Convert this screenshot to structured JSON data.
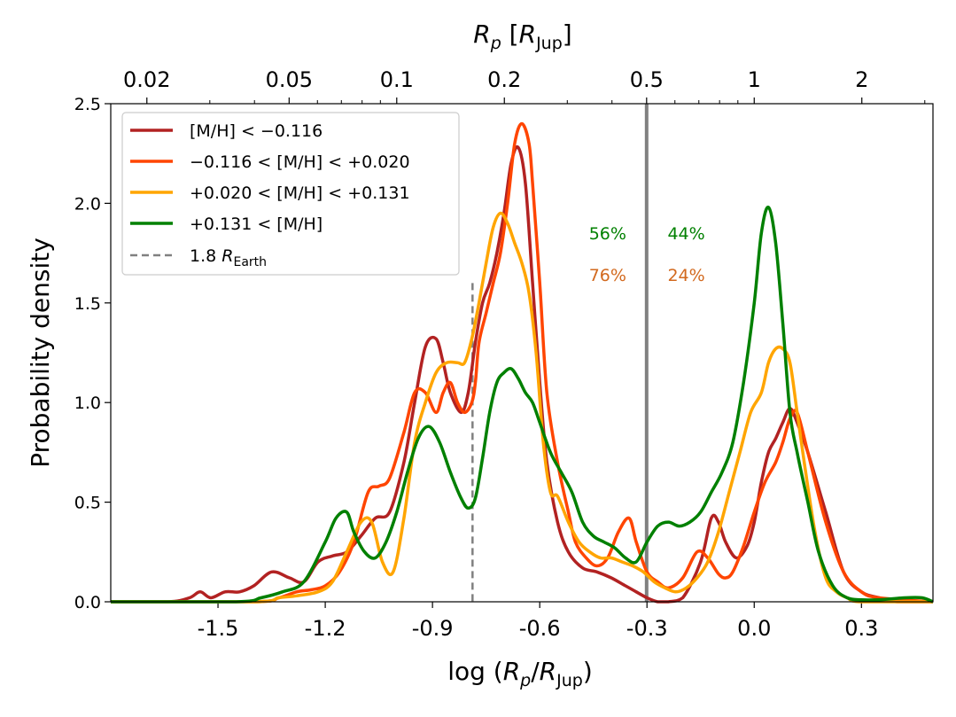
{
  "chart_data": {
    "type": "line",
    "ylabel": "Probability density",
    "xlabel": {
      "prefix": "log (",
      "var": "R",
      "var_sub": "p",
      "slash": "/",
      "den": "R",
      "den_sub": "Jup",
      "suffix": ")"
    },
    "top_xlabel": {
      "var": "R",
      "var_sub": "p",
      "unit": "R",
      "unit_sub": "Jup"
    },
    "xlim": [
      -1.8,
      0.5
    ],
    "ylim": [
      0,
      2.5
    ],
    "xticks": [
      {
        "v": -1.5,
        "label": "-1.5"
      },
      {
        "v": -1.2,
        "label": "-1.2"
      },
      {
        "v": -0.9,
        "label": "-0.9"
      },
      {
        "v": -0.6,
        "label": "-0.6"
      },
      {
        "v": -0.3,
        "label": "-0.3"
      },
      {
        "v": 0.0,
        "label": "0.0"
      },
      {
        "v": 0.3,
        "label": "0.3"
      }
    ],
    "yticks": [
      {
        "v": 0.0,
        "label": "0.0"
      },
      {
        "v": 0.5,
        "label": "0.5"
      },
      {
        "v": 1.0,
        "label": "1.0"
      },
      {
        "v": 1.5,
        "label": "1.5"
      },
      {
        "v": 2.0,
        "label": "2.0"
      },
      {
        "v": 2.5,
        "label": "2.5"
      }
    ],
    "top_ticks": [
      {
        "r": 0.02,
        "label": "0.02"
      },
      {
        "r": 0.05,
        "label": "0.05"
      },
      {
        "r": 0.1,
        "label": "0.1"
      },
      {
        "r": 0.2,
        "label": "0.2"
      },
      {
        "r": 0.5,
        "label": "0.5"
      },
      {
        "r": 1,
        "label": "1"
      },
      {
        "r": 2,
        "label": "2"
      }
    ],
    "top_minor_ticks": [
      0.03,
      0.04,
      0.06,
      0.07,
      0.08,
      0.09,
      0.3,
      0.4,
      0.6,
      0.7,
      0.8,
      0.9,
      3
    ],
    "vline_solid": {
      "x": -0.301,
      "color": "#808080"
    },
    "vline_dashed": {
      "x": -0.788,
      "ymax": 1.6,
      "color": "#808080"
    },
    "annotations": [
      {
        "text": "56%",
        "x": -0.41,
        "y": 1.82,
        "color": "#008000"
      },
      {
        "text": "44%",
        "x": -0.19,
        "y": 1.82,
        "color": "#008000"
      },
      {
        "text": "76%",
        "x": -0.41,
        "y": 1.61,
        "color": "#d2691e"
      },
      {
        "text": "24%",
        "x": -0.19,
        "y": 1.61,
        "color": "#d2691e"
      }
    ],
    "series": [
      {
        "name": "[M/H] < −0.116",
        "legend_label": "[M/H] < −0.116",
        "color": "#b22222",
        "x": [
          -1.8,
          -1.64,
          -1.58,
          -1.55,
          -1.52,
          -1.48,
          -1.44,
          -1.4,
          -1.35,
          -1.3,
          -1.26,
          -1.22,
          -1.18,
          -1.14,
          -1.1,
          -1.06,
          -1.02,
          -0.98,
          -0.95,
          -0.92,
          -0.89,
          -0.87,
          -0.85,
          -0.82,
          -0.8,
          -0.78,
          -0.76,
          -0.74,
          -0.72,
          -0.7,
          -0.68,
          -0.66,
          -0.64,
          -0.62,
          -0.6,
          -0.58,
          -0.55,
          -0.52,
          -0.48,
          -0.44,
          -0.4,
          -0.36,
          -0.33,
          -0.3,
          -0.27,
          -0.24,
          -0.2,
          -0.15,
          -0.12,
          -0.1,
          -0.08,
          -0.05,
          -0.02,
          0.0,
          0.02,
          0.04,
          0.06,
          0.08,
          0.1,
          0.12,
          0.15,
          0.2,
          0.25,
          0.3,
          0.35,
          0.4,
          0.5
        ],
        "y": [
          0,
          0,
          0.02,
          0.05,
          0.02,
          0.05,
          0.05,
          0.08,
          0.15,
          0.12,
          0.1,
          0.2,
          0.23,
          0.25,
          0.33,
          0.42,
          0.45,
          0.7,
          1.0,
          1.28,
          1.32,
          1.2,
          1.05,
          0.95,
          1.05,
          1.3,
          1.5,
          1.6,
          1.75,
          1.95,
          2.2,
          2.28,
          2.1,
          1.6,
          1.1,
          0.7,
          0.4,
          0.25,
          0.17,
          0.15,
          0.12,
          0.08,
          0.05,
          0.02,
          0,
          0,
          0.02,
          0.2,
          0.42,
          0.4,
          0.3,
          0.22,
          0.28,
          0.4,
          0.6,
          0.75,
          0.82,
          0.9,
          0.97,
          0.9,
          0.75,
          0.45,
          0.15,
          0.05,
          0.02,
          0,
          0
        ]
      },
      {
        "name": "−0.116 < [M/H] < +0.020",
        "legend_label": "−0.116 < [M/H] < +0.020",
        "color": "#ff4500",
        "x": [
          -1.8,
          -1.4,
          -1.33,
          -1.28,
          -1.24,
          -1.2,
          -1.16,
          -1.12,
          -1.08,
          -1.05,
          -1.02,
          -0.98,
          -0.95,
          -0.92,
          -0.89,
          -0.87,
          -0.85,
          -0.83,
          -0.81,
          -0.79,
          -0.78,
          -0.77,
          -0.75,
          -0.73,
          -0.71,
          -0.69,
          -0.67,
          -0.65,
          -0.63,
          -0.62,
          -0.6,
          -0.58,
          -0.55,
          -0.52,
          -0.5,
          -0.47,
          -0.44,
          -0.41,
          -0.38,
          -0.35,
          -0.33,
          -0.3,
          -0.27,
          -0.24,
          -0.2,
          -0.16,
          -0.13,
          -0.1,
          -0.08,
          -0.06,
          -0.03,
          0.0,
          0.03,
          0.06,
          0.08,
          0.1,
          0.12,
          0.15,
          0.2,
          0.25,
          0.3,
          0.35,
          0.5
        ],
        "y": [
          0,
          0,
          0.02,
          0.05,
          0.06,
          0.08,
          0.15,
          0.3,
          0.55,
          0.58,
          0.62,
          0.85,
          1.05,
          1.05,
          0.95,
          1.05,
          1.1,
          1.0,
          0.95,
          1.0,
          1.1,
          1.3,
          1.45,
          1.6,
          1.75,
          2.0,
          2.3,
          2.4,
          2.3,
          2.1,
          1.6,
          1.05,
          0.7,
          0.45,
          0.3,
          0.22,
          0.18,
          0.22,
          0.35,
          0.42,
          0.3,
          0.15,
          0.1,
          0.07,
          0.12,
          0.25,
          0.22,
          0.14,
          0.12,
          0.15,
          0.28,
          0.45,
          0.6,
          0.7,
          0.8,
          0.92,
          0.95,
          0.75,
          0.4,
          0.15,
          0.05,
          0.02,
          0
        ]
      },
      {
        "name": "+0.020 < [M/H] < +0.131",
        "legend_label": "+0.020 < [M/H] < +0.131",
        "color": "#ffa500",
        "x": [
          -1.8,
          -1.4,
          -1.33,
          -1.28,
          -1.22,
          -1.18,
          -1.14,
          -1.1,
          -1.07,
          -1.04,
          -1.01,
          -0.98,
          -0.95,
          -0.92,
          -0.89,
          -0.86,
          -0.83,
          -0.81,
          -0.79,
          -0.77,
          -0.75,
          -0.73,
          -0.71,
          -0.69,
          -0.67,
          -0.65,
          -0.63,
          -0.61,
          -0.59,
          -0.57,
          -0.55,
          -0.52,
          -0.49,
          -0.46,
          -0.43,
          -0.4,
          -0.37,
          -0.34,
          -0.31,
          -0.28,
          -0.25,
          -0.22,
          -0.19,
          -0.16,
          -0.13,
          -0.1,
          -0.07,
          -0.04,
          -0.01,
          0.02,
          0.04,
          0.06,
          0.08,
          0.1,
          0.12,
          0.14,
          0.17,
          0.2,
          0.23,
          0.26,
          0.3,
          0.5
        ],
        "y": [
          0,
          0,
          0.02,
          0.03,
          0.05,
          0.1,
          0.25,
          0.4,
          0.4,
          0.2,
          0.15,
          0.42,
          0.8,
          1.0,
          1.15,
          1.2,
          1.2,
          1.2,
          1.32,
          1.5,
          1.7,
          1.88,
          1.95,
          1.9,
          1.8,
          1.7,
          1.55,
          1.25,
          0.8,
          0.55,
          0.53,
          0.4,
          0.3,
          0.25,
          0.22,
          0.22,
          0.2,
          0.18,
          0.15,
          0.1,
          0.07,
          0.05,
          0.07,
          0.12,
          0.2,
          0.35,
          0.55,
          0.75,
          0.95,
          1.05,
          1.2,
          1.27,
          1.27,
          1.2,
          0.95,
          0.7,
          0.35,
          0.12,
          0.05,
          0.02,
          0,
          0
        ]
      },
      {
        "name": "+0.131 < [M/H]",
        "legend_label": "+0.131 < [M/H]",
        "color": "#008000",
        "x": [
          -1.8,
          -1.45,
          -1.38,
          -1.32,
          -1.26,
          -1.2,
          -1.17,
          -1.14,
          -1.12,
          -1.09,
          -1.06,
          -1.03,
          -1.0,
          -0.97,
          -0.94,
          -0.91,
          -0.88,
          -0.85,
          -0.82,
          -0.8,
          -0.78,
          -0.76,
          -0.74,
          -0.72,
          -0.7,
          -0.68,
          -0.66,
          -0.64,
          -0.62,
          -0.6,
          -0.57,
          -0.54,
          -0.51,
          -0.48,
          -0.45,
          -0.42,
          -0.39,
          -0.36,
          -0.33,
          -0.3,
          -0.27,
          -0.24,
          -0.21,
          -0.18,
          -0.15,
          -0.12,
          -0.09,
          -0.06,
          -0.03,
          0.0,
          0.02,
          0.04,
          0.06,
          0.08,
          0.1,
          0.12,
          0.15,
          0.18,
          0.22,
          0.26,
          0.3,
          0.35,
          0.42,
          0.47,
          0.5
        ],
        "y": [
          0,
          0,
          0.02,
          0.05,
          0.1,
          0.3,
          0.42,
          0.45,
          0.35,
          0.25,
          0.22,
          0.3,
          0.45,
          0.65,
          0.82,
          0.88,
          0.8,
          0.65,
          0.52,
          0.47,
          0.52,
          0.72,
          0.95,
          1.1,
          1.15,
          1.17,
          1.12,
          1.05,
          1.0,
          0.9,
          0.75,
          0.65,
          0.55,
          0.4,
          0.33,
          0.3,
          0.27,
          0.22,
          0.2,
          0.3,
          0.38,
          0.4,
          0.38,
          0.4,
          0.45,
          0.55,
          0.65,
          0.8,
          1.1,
          1.5,
          1.85,
          1.98,
          1.8,
          1.4,
          0.95,
          0.75,
          0.5,
          0.25,
          0.08,
          0.02,
          0.01,
          0.01,
          0.02,
          0.02,
          0
        ]
      }
    ],
    "legend_extra": {
      "prefix": "1.8 ",
      "var": "R",
      "sub": "Earth"
    }
  }
}
